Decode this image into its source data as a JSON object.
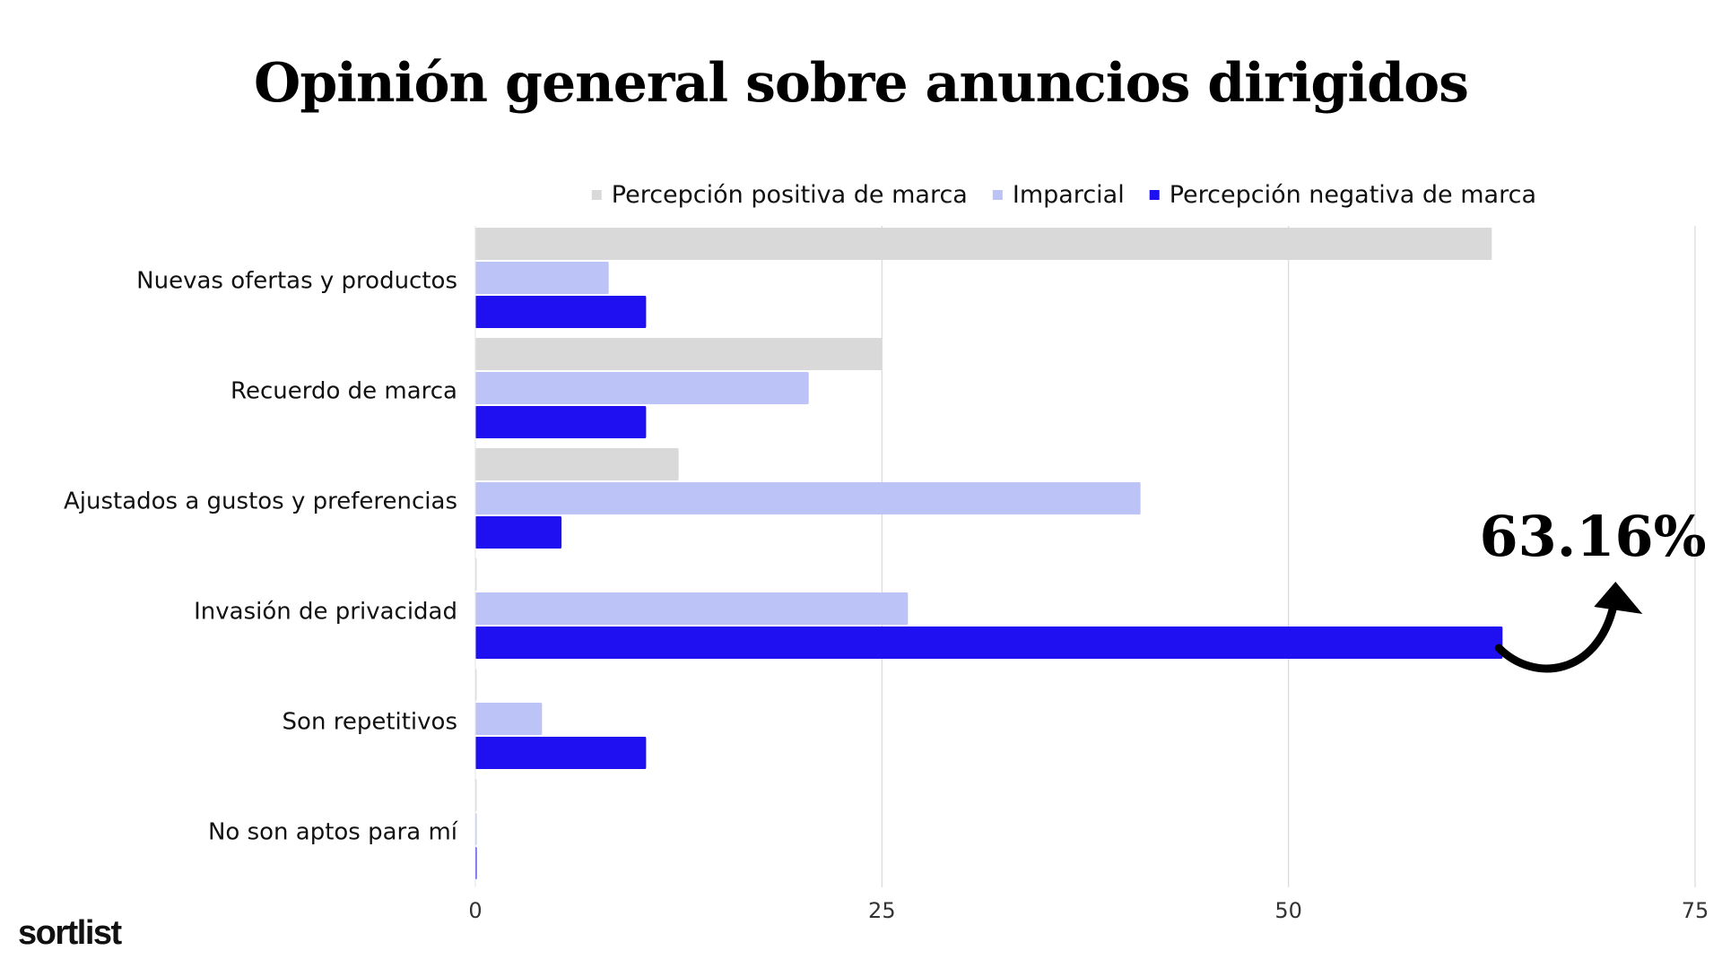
{
  "chart_data": {
    "type": "bar",
    "orientation": "horizontal",
    "title": "Opinión general sobre anuncios dirigidos",
    "categories": [
      "Nuevas ofertas y productos",
      "Recuerdo de marca",
      "Ajustados a gustos y preferencias",
      "Invasión de privacidad",
      "Son repetitivos",
      "No son aptos para mí"
    ],
    "series": [
      {
        "name": "Percepción positiva de marca",
        "color": "#d9d9d9",
        "values": [
          62.5,
          25.0,
          12.5,
          0,
          0,
          0
        ]
      },
      {
        "name": "Imparcial",
        "color": "#bcc3f7",
        "values": [
          8.2,
          20.5,
          40.9,
          26.6,
          4.1,
          0
        ]
      },
      {
        "name": "Percepción negativa de marca",
        "color": "#1f10f2",
        "values": [
          10.5,
          10.5,
          5.3,
          63.16,
          10.5,
          0
        ]
      }
    ],
    "xlim": [
      0,
      75
    ],
    "x_ticks": [
      "0",
      "25",
      "50",
      "75"
    ],
    "grid": true,
    "legend_position": "top",
    "annotation": {
      "text": "63.16%",
      "category": "Invasión de privacidad",
      "series": "Percepción negativa de marca"
    }
  },
  "brand": {
    "logo_text": "sortlist"
  }
}
